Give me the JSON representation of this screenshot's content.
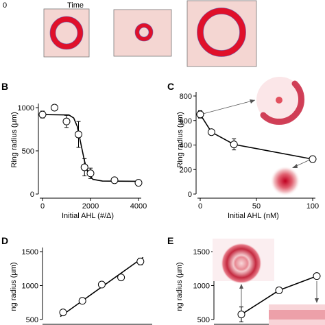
{
  "panel_a": {
    "time_zero_label": "0",
    "time_label": "Time",
    "dish_color": "#f4d6d2",
    "ring_color": "#e0102a",
    "ring_edge_color": "#5a5ab0"
  },
  "panel_b": {
    "letter": "B"
  },
  "panel_c": {
    "letter": "C"
  },
  "panel_d": {
    "letter": "D"
  },
  "panel_e": {
    "letter": "E"
  },
  "chart_data": [
    {
      "panel": "B",
      "type": "scatter",
      "xlabel": "Initial AHL (#/Δ)",
      "ylabel": "Ring radius (µm)",
      "xlim": [
        0,
        4000
      ],
      "ylim": [
        0,
        1000
      ],
      "xticks": [
        0,
        2000,
        4000
      ],
      "yticks": [
        0,
        500,
        1000
      ],
      "points": [
        {
          "x": 0,
          "y": 920,
          "err": 40
        },
        {
          "x": 500,
          "y": 1000,
          "err": 30
        },
        {
          "x": 1000,
          "y": 840,
          "err": 70
        },
        {
          "x": 1500,
          "y": 690,
          "err": 150
        },
        {
          "x": 1750,
          "y": 310,
          "err": 100
        },
        {
          "x": 2000,
          "y": 240,
          "err": 60
        },
        {
          "x": 3000,
          "y": 160,
          "err": 20
        },
        {
          "x": 4000,
          "y": 130,
          "err": 20
        }
      ],
      "fit": [
        [
          0,
          920
        ],
        [
          1100,
          915
        ],
        [
          1300,
          880
        ],
        [
          1450,
          780
        ],
        [
          1600,
          580
        ],
        [
          1750,
          380
        ],
        [
          1900,
          240
        ],
        [
          2100,
          170
        ],
        [
          2500,
          150
        ],
        [
          4000,
          148
        ]
      ]
    },
    {
      "panel": "C",
      "type": "line",
      "xlabel": "Initial AHL (nM)",
      "ylabel": "Ring radius (µm)",
      "xlim": [
        0,
        100
      ],
      "ylim": [
        0,
        800
      ],
      "xticks": [
        0,
        50,
        100
      ],
      "yticks": [
        0,
        200,
        400,
        600,
        800
      ],
      "points": [
        {
          "x": 0,
          "y": 650,
          "err": 30
        },
        {
          "x": 10,
          "y": 505,
          "err": 15
        },
        {
          "x": 30,
          "y": 405,
          "err": 45
        },
        {
          "x": 100,
          "y": 285,
          "err": 15
        }
      ]
    },
    {
      "panel": "D",
      "type": "scatter",
      "xlabel": "",
      "ylabel": "ng radius (µm)",
      "ylim": [
        500,
        1500
      ],
      "yticks": [
        500,
        1000,
        1500
      ],
      "points": [
        {
          "x": 1,
          "y": 605,
          "err": 30
        },
        {
          "x": 2,
          "y": 775,
          "err": 25
        },
        {
          "x": 3,
          "y": 1015,
          "err": 40
        },
        {
          "x": 4,
          "y": 1120,
          "err": 30
        },
        {
          "x": 5,
          "y": 1355,
          "err": 50
        }
      ]
    },
    {
      "panel": "E",
      "type": "line",
      "xlabel": "",
      "ylabel": "ng radius (µm)",
      "ylim": [
        500,
        1500
      ],
      "yticks": [
        500,
        1000,
        1500
      ],
      "points": [
        {
          "x": 1,
          "y": 575,
          "err": 110
        },
        {
          "x": 2,
          "y": 930,
          "err": 20
        },
        {
          "x": 3,
          "y": 1140,
          "err": 20
        }
      ]
    }
  ]
}
